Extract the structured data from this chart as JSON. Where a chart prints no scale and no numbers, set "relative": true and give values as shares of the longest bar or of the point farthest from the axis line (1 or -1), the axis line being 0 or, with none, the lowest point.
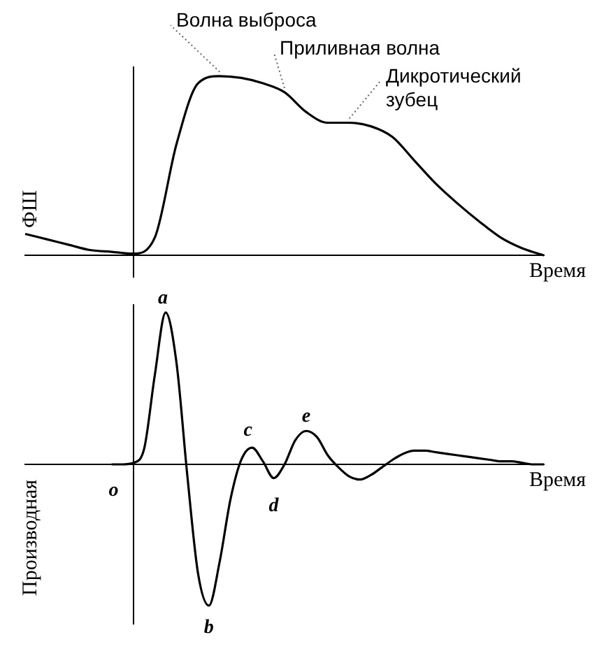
{
  "chart_data": [
    {
      "type": "line",
      "relative": true,
      "xlabel": "Время",
      "ylabel": "ФШ",
      "color": "#000000",
      "grid": false,
      "legend": false,
      "annotations": [
        "Волна выброса",
        "Приливная волна",
        "Дикротический зубец"
      ],
      "categories": [
        null,
        null,
        null,
        null,
        null,
        null,
        null,
        null,
        null,
        null,
        null,
        null,
        null,
        null,
        null,
        null,
        null,
        null,
        null,
        null,
        null,
        null,
        null,
        null,
        null
      ],
      "values": [
        0.12,
        0.09,
        0.06,
        0.03,
        0.02,
        0.01,
        0.1,
        0.62,
        0.96,
        1,
        0.99,
        0.96,
        0.91,
        0.8,
        0.74,
        0.74,
        0.72,
        0.66,
        0.53,
        0.4,
        0.29,
        0.19,
        0.1,
        0.04,
        0
      ]
    },
    {
      "type": "line",
      "relative": true,
      "xlabel": "Время",
      "ylabel": "Производная",
      "color": "#000000",
      "grid": false,
      "legend": false,
      "annotations": [
        "a",
        "b",
        "c",
        "d",
        "e",
        "o"
      ],
      "categories": [
        null,
        null,
        null,
        null,
        null,
        null,
        null,
        null,
        null,
        null,
        null,
        null,
        null,
        null,
        null,
        null,
        null,
        null,
        null,
        null,
        null,
        null,
        null,
        null,
        null,
        null,
        null,
        null,
        null,
        null,
        null,
        null,
        null,
        null,
        null,
        null,
        null,
        null,
        null,
        null,
        null,
        null,
        null,
        null,
        null,
        null,
        null,
        null,
        null
      ],
      "values": [
        null,
        null,
        null,
        null,
        null,
        null,
        null,
        null,
        0,
        0,
        0.01,
        0.1,
        0.59,
        1,
        0.67,
        -0.07,
        -0.72,
        -0.93,
        -0.64,
        -0.23,
        0.03,
        0.11,
        0.02,
        -0.09,
        0,
        0.16,
        0.22,
        0.18,
        0.06,
        -0.02,
        -0.08,
        -0.1,
        -0.07,
        -0.02,
        0.03,
        0.07,
        0.09,
        0.09,
        0.08,
        0.07,
        0.06,
        0.05,
        0.04,
        0.03,
        0.02,
        0.02,
        0.01,
        0,
        0
      ]
    }
  ]
}
